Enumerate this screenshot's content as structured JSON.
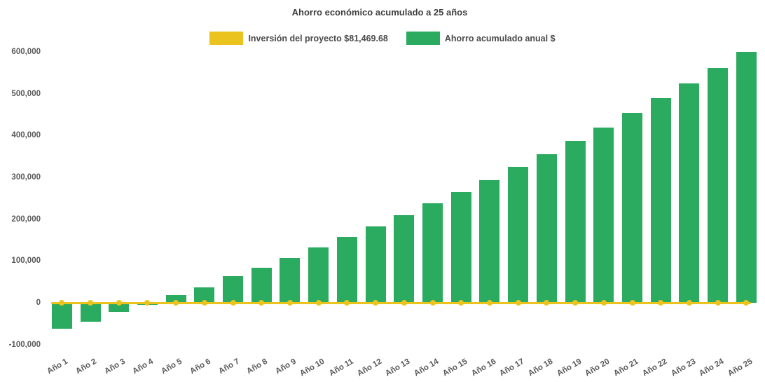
{
  "title": "Ahorro económico acumulado a 25 años",
  "legend": {
    "items": [
      {
        "label": "Inversión del proyecto $81,469.68",
        "color": "#EAC31E"
      },
      {
        "label": "Ahorro acumulado anual $",
        "color": "#2BAB5F"
      }
    ]
  },
  "chart_data": {
    "type": "bar",
    "title": "Ahorro económico acumulado a 25 años",
    "categories": [
      "Año 1",
      "Año 2",
      "Año 3",
      "Año 4",
      "Año 5",
      "Año 6",
      "Año 7",
      "Año 8",
      "Año 9",
      "Año 10",
      "Año 11",
      "Año 12",
      "Año 13",
      "Año 14",
      "Año 15",
      "Año 16",
      "Año 17",
      "Año 18",
      "Año 19",
      "Año 20",
      "Año 21",
      "Año 22",
      "Año 23",
      "Año 24",
      "Año 25"
    ],
    "series": [
      {
        "name": "Ahorro acumulado anual $",
        "type": "bar",
        "color": "#2BAB5F",
        "values": [
          -62000,
          -46000,
          -22500,
          -4500,
          18000,
          37000,
          63000,
          83000,
          107000,
          132000,
          157000,
          183500,
          209000,
          238000,
          265000,
          294000,
          325000,
          355000,
          387000,
          418500,
          454000,
          489500,
          525000,
          562000,
          600000
        ]
      },
      {
        "name": "Inversión del proyecto $81,469.68",
        "type": "line",
        "color": "#EAC31E",
        "marker": "circle",
        "constant_value": 0
      }
    ],
    "xlabel": "",
    "ylabel": "",
    "ylim": [
      -100000,
      600000
    ],
    "ytick_step": 100000,
    "ytick_labels": [
      "-100,000",
      "0",
      "100,000",
      "200,000",
      "300,000",
      "400,000",
      "500,000",
      "600,000"
    ],
    "grid": false,
    "legend_position": "top"
  },
  "colors": {
    "background": "#ffffff",
    "title_text": "#3f3f3f",
    "legend_text": "#4a4a4a",
    "tick_text": "#595959",
    "bar_green": "#2BAB5F",
    "line_yellow": "#EAC31E"
  }
}
